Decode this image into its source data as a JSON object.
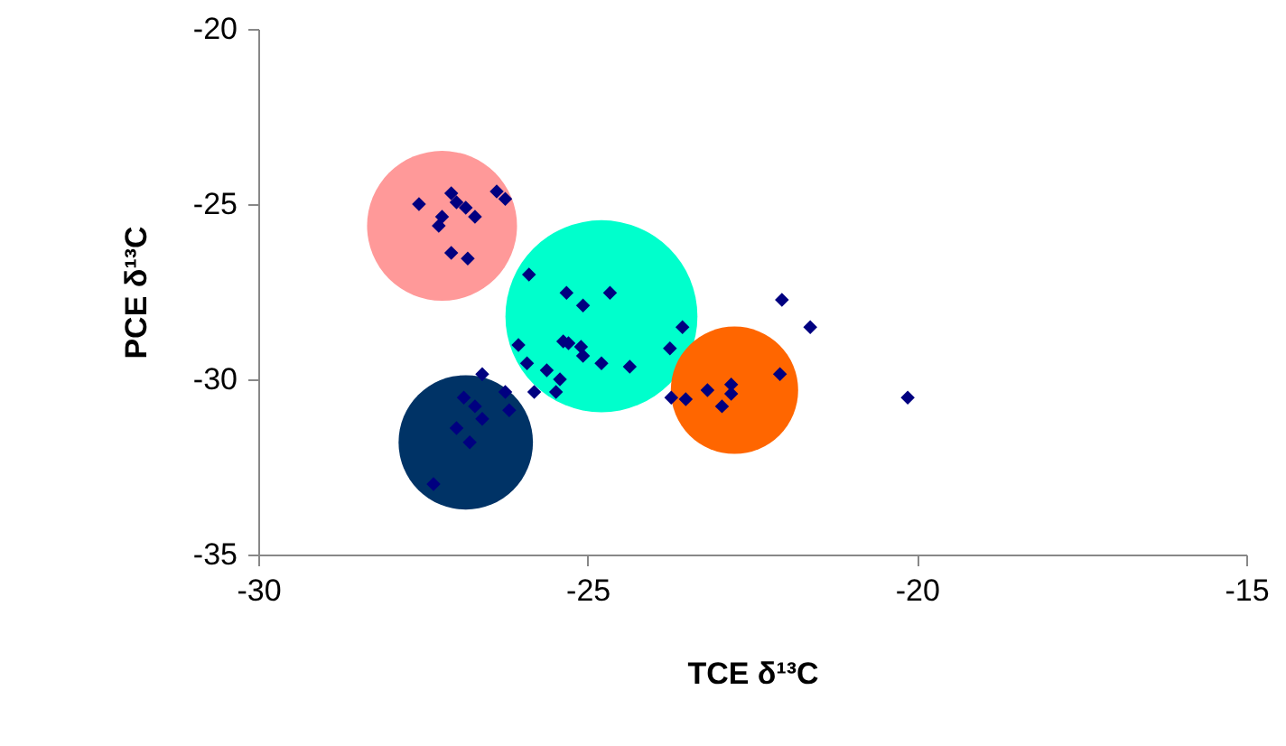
{
  "chart_data": {
    "type": "scatter",
    "xlabel": "TCE δ¹³C",
    "ylabel": "PCE δ¹³C",
    "xlim": [
      -30,
      -15
    ],
    "ylim": [
      -35,
      -20
    ],
    "xticks": [
      -30,
      -25,
      -20,
      -15
    ],
    "yticks": [
      -35,
      -30,
      -25,
      -20
    ],
    "grid": false,
    "series": [
      {
        "type": "bubble",
        "x": [
          -27.21,
          -24.79,
          -26.85,
          -22.77
        ],
        "values": [
          -25.62,
          -28.2,
          -31.8,
          -30.31
        ],
        "sizes": [
          0.61,
          1,
          0.49,
          0.44
        ],
        "colors": [
          "#ff9999",
          "#00ffcc",
          "#003366",
          "#ff6600"
        ]
      },
      {
        "marker": "diamond",
        "color": "#000080",
        "x": [
          -27.56,
          -27.07,
          -26.99,
          -26.85,
          -26.71,
          -26.38,
          -26.25,
          -27.21,
          -27.26,
          -27.07,
          -26.82,
          -25.89,
          -25.32,
          -25.07,
          -24.66,
          -26.05,
          -25.37,
          -25.1,
          -25.07,
          -24.79,
          -24.36,
          -25.92,
          -25.62,
          -25.42,
          -25.48,
          -25.81,
          -25.29,
          -23.56,
          -23.75,
          -26.6,
          -26.88,
          -26.25,
          -26.19,
          -26.6,
          -26.99,
          -26.79,
          -27.34,
          -26.71,
          -22.05,
          -21.62,
          -22.08,
          -23.73,
          -23.51,
          -23.18,
          -22.82,
          -22.82,
          -22.96,
          -20.14
        ],
        "values": [
          -25.0,
          -24.69,
          -24.95,
          -25.1,
          -25.36,
          -24.64,
          -24.85,
          -25.36,
          -25.62,
          -26.39,
          -26.55,
          -27.01,
          -27.53,
          -27.89,
          -27.53,
          -29.02,
          -28.92,
          -29.07,
          -29.33,
          -29.54,
          -29.64,
          -29.54,
          -29.74,
          -30.0,
          -30.36,
          -30.36,
          -28.97,
          -28.51,
          -29.12,
          -29.85,
          -30.52,
          -30.36,
          -30.88,
          -31.13,
          -31.39,
          -31.8,
          -32.99,
          -30.77,
          -27.73,
          -28.51,
          -29.85,
          -30.52,
          -30.57,
          -30.31,
          -30.15,
          -30.41,
          -30.77,
          -30.52
        ]
      }
    ]
  }
}
